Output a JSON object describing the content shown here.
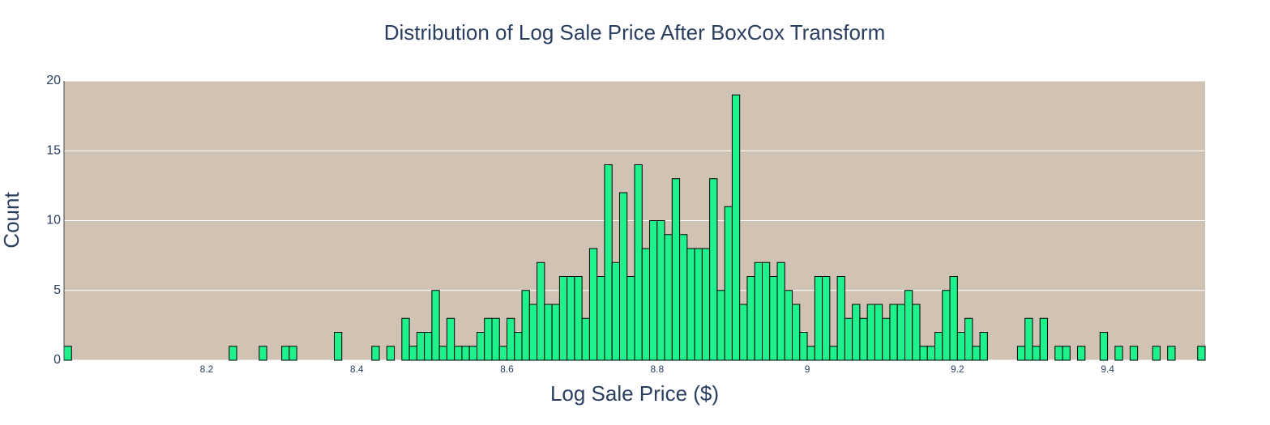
{
  "chart_data": {
    "type": "histogram",
    "title": "Distribution of Log Sale Price After BoxCox Transform",
    "x_label": "Log Sale Price ($)",
    "y_label": "Count",
    "bins": [
      8.01,
      8.02,
      8.03,
      8.04,
      8.05,
      8.06,
      8.07,
      8.08,
      8.09,
      8.1,
      8.11,
      8.12,
      8.13,
      8.14,
      8.15,
      8.16,
      8.17,
      8.18,
      8.19,
      8.2,
      8.21,
      8.22,
      8.23,
      8.24,
      8.25,
      8.26,
      8.27,
      8.28,
      8.29,
      8.3,
      8.31,
      8.32,
      8.33,
      8.34,
      8.35,
      8.36,
      8.37,
      8.38,
      8.39,
      8.4,
      8.41,
      8.42,
      8.43,
      8.44,
      8.45,
      8.46,
      8.47,
      8.48,
      8.49,
      8.5,
      8.51,
      8.52,
      8.53,
      8.54,
      8.55,
      8.56,
      8.57,
      8.58,
      8.59,
      8.6,
      8.61,
      8.62,
      8.63,
      8.64,
      8.65,
      8.66,
      8.67,
      8.68,
      8.69,
      8.7,
      8.71,
      8.72,
      8.73,
      8.74,
      8.75,
      8.76,
      8.77,
      8.78,
      8.79,
      8.8,
      8.81,
      8.82,
      8.83,
      8.84,
      8.85,
      8.86,
      8.87,
      8.88,
      8.89,
      8.9,
      8.91,
      8.92,
      8.93,
      8.94,
      8.95,
      8.96,
      8.97,
      8.98,
      8.99,
      9.0,
      9.01,
      9.02,
      9.03,
      9.04,
      9.05,
      9.06,
      9.07,
      9.08,
      9.09,
      9.1,
      9.11,
      9.12,
      9.13,
      9.14,
      9.15,
      9.16,
      9.17,
      9.18,
      9.19,
      9.2,
      9.21,
      9.22,
      9.23,
      9.24,
      9.25,
      9.26,
      9.27,
      9.28,
      9.29,
      9.3,
      9.31,
      9.32,
      9.33,
      9.34,
      9.35,
      9.36,
      9.37,
      9.38,
      9.39,
      9.4,
      9.41,
      9.42,
      9.43,
      9.44,
      9.45,
      9.46,
      9.47,
      9.48,
      9.49,
      9.5,
      9.51,
      9.52,
      9.53
    ],
    "values": [
      1,
      0,
      0,
      0,
      0,
      0,
      0,
      0,
      0,
      0,
      0,
      0,
      0,
      0,
      0,
      0,
      0,
      0,
      0,
      0,
      0,
      0,
      1,
      0,
      0,
      0,
      1,
      0,
      0,
      1,
      1,
      0,
      0,
      0,
      0,
      0,
      2,
      0,
      0,
      0,
      0,
      1,
      0,
      1,
      0,
      3,
      1,
      2,
      2,
      5,
      1,
      3,
      1,
      1,
      1,
      2,
      3,
      3,
      1,
      3,
      2,
      5,
      4,
      7,
      4,
      4,
      6,
      6,
      6,
      3,
      8,
      6,
      14,
      7,
      12,
      6,
      14,
      8,
      10,
      10,
      9,
      13,
      9,
      8,
      8,
      8,
      13,
      5,
      11,
      19,
      4,
      6,
      7,
      7,
      6,
      7,
      5,
      4,
      2,
      1,
      6,
      6,
      1,
      6,
      3,
      4,
      3,
      4,
      4,
      3,
      4,
      4,
      5,
      4,
      1,
      1,
      2,
      5,
      6,
      2,
      3,
      1,
      2,
      0,
      0,
      0,
      0,
      1,
      3,
      1,
      3,
      0,
      1,
      1,
      0,
      1,
      0,
      0,
      2,
      0,
      1,
      0,
      1,
      0,
      0,
      1,
      0,
      1,
      0,
      0,
      0,
      1
    ],
    "color": "#1ff28c",
    "edge_color": "#000000",
    "plot_background": "#d0c3b3",
    "xlim": [
      8.01,
      9.53
    ],
    "xticks": [
      8.2,
      8.4,
      8.6,
      8.8,
      9,
      9.2,
      9.4
    ],
    "ylim": [
      0,
      20
    ],
    "yticks": [
      0,
      5,
      10,
      15,
      20
    ],
    "grid": true
  }
}
